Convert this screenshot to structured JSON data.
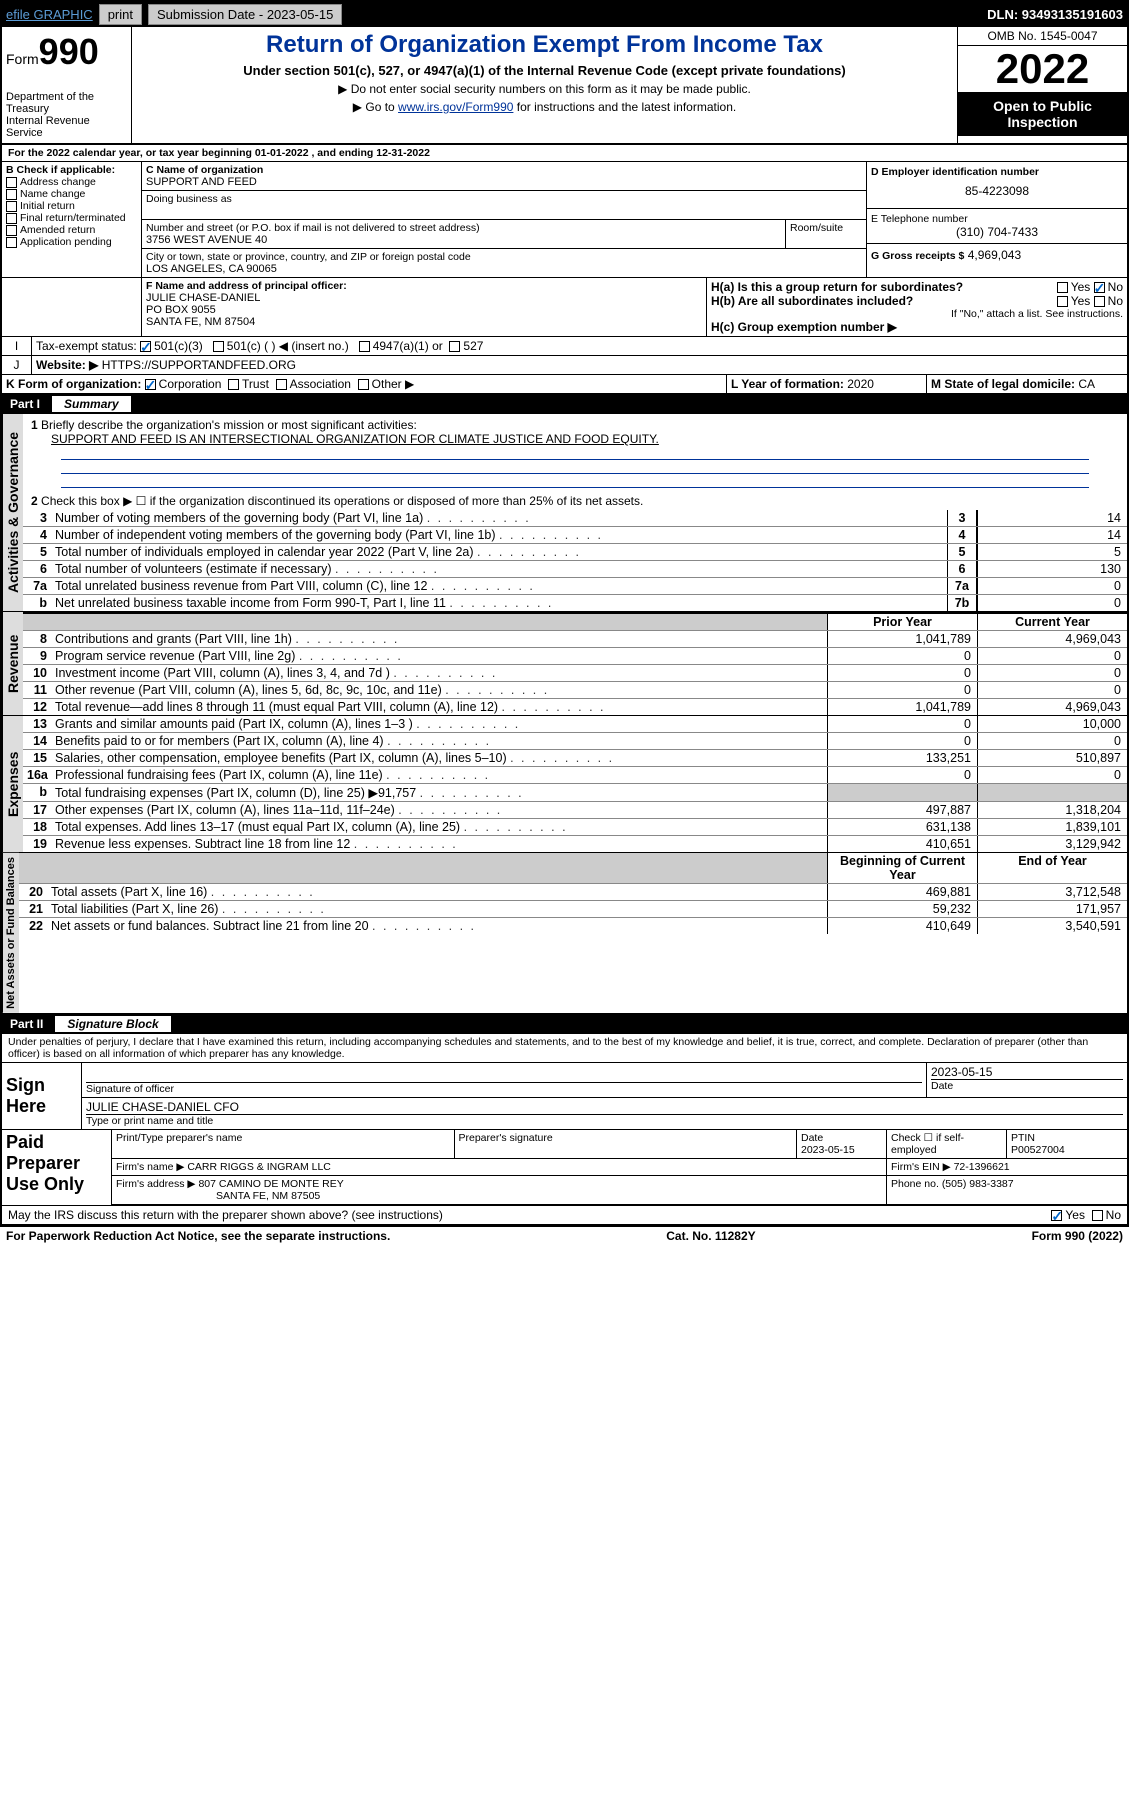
{
  "topbar": {
    "efile": "efile GRAPHIC",
    "print": "print",
    "subdate_label": "Submission Date - 2023-05-15",
    "dln": "DLN: 93493135191603"
  },
  "header": {
    "form_word": "Form",
    "form_num": "990",
    "dept": "Department of the Treasury",
    "irs": "Internal Revenue Service",
    "title": "Return of Organization Exempt From Income Tax",
    "sub": "Under section 501(c), 527, or 4947(a)(1) of the Internal Revenue Code (except private foundations)",
    "note1": "▶ Do not enter social security numbers on this form as it may be made public.",
    "note2_pre": "▶ Go to ",
    "note2_link": "www.irs.gov/Form990",
    "note2_post": " for instructions and the latest information.",
    "omb": "OMB No. 1545-0047",
    "year": "2022",
    "open": "Open to Public Inspection"
  },
  "periodA": "For the 2022 calendar year, or tax year beginning 01-01-2022    , and ending 12-31-2022",
  "blockB": {
    "label": "B Check if applicable:",
    "opts": [
      "Address change",
      "Name change",
      "Initial return",
      "Final return/terminated",
      "Amended return",
      "Application pending"
    ]
  },
  "blockC": {
    "name_label": "C Name of organization",
    "name": "SUPPORT AND FEED",
    "dba_label": "Doing business as",
    "addr_label": "Number and street (or P.O. box if mail is not delivered to street address)",
    "room": "Room/suite",
    "addr": "3756 WEST AVENUE 40",
    "city_label": "City or town, state or province, country, and ZIP or foreign postal code",
    "city": "LOS ANGELES, CA  90065"
  },
  "blockD": {
    "label": "D Employer identification number",
    "val": "85-4223098"
  },
  "blockE": {
    "label": "E Telephone number",
    "val": "(310) 704-7433"
  },
  "blockG": {
    "label": "G Gross receipts $",
    "val": "4,969,043"
  },
  "blockF": {
    "label": "F Name and address of principal officer:",
    "name": "JULIE CHASE-DANIEL",
    "po": "PO BOX 9055",
    "city": "SANTA FE, NM  87504"
  },
  "blockH": {
    "a": "H(a)  Is this a group return for subordinates?",
    "b": "H(b)  Are all subordinates included?",
    "b_note": "If \"No,\" attach a list. See instructions.",
    "c": "H(c)  Group exemption number ▶",
    "yes": "Yes",
    "no": "No"
  },
  "taxexempt": {
    "label": "Tax-exempt status:",
    "o1": "501(c)(3)",
    "o2": "501(c) (  ) ◀ (insert no.)",
    "o3": "4947(a)(1) or",
    "o4": "527"
  },
  "websiteJ": {
    "label": "Website: ▶",
    "val": "HTTPS://SUPPORTANDFEED.ORG"
  },
  "formK": {
    "label": "K Form of organization:",
    "corp": "Corporation",
    "trust": "Trust",
    "assoc": "Association",
    "other": "Other ▶"
  },
  "yearL": {
    "label": "L Year of formation: ",
    "val": "2020"
  },
  "stateM": {
    "label": "M State of legal domicile: ",
    "val": "CA"
  },
  "part1": {
    "num": "Part I",
    "title": "Summary"
  },
  "summary": {
    "l1": "Briefly describe the organization's mission or most significant activities:",
    "l1val": "SUPPORT AND FEED IS AN INTERSECTIONAL ORGANIZATION FOR CLIMATE JUSTICE AND FOOD EQUITY.",
    "l2": "Check this box ▶ ☐  if the organization discontinued its operations or disposed of more than 25% of its net assets.",
    "rows": [
      {
        "n": "3",
        "d": "Number of voting members of the governing body (Part VI, line 1a)",
        "box": "3",
        "v": "14"
      },
      {
        "n": "4",
        "d": "Number of independent voting members of the governing body (Part VI, line 1b)",
        "box": "4",
        "v": "14"
      },
      {
        "n": "5",
        "d": "Total number of individuals employed in calendar year 2022 (Part V, line 2a)",
        "box": "5",
        "v": "5"
      },
      {
        "n": "6",
        "d": "Total number of volunteers (estimate if necessary)",
        "box": "6",
        "v": "130"
      },
      {
        "n": "7a",
        "d": "Total unrelated business revenue from Part VIII, column (C), line 12",
        "box": "7a",
        "v": "0"
      },
      {
        "n": "b",
        "d": "Net unrelated business taxable income from Form 990-T, Part I, line 11",
        "box": "7b",
        "v": "0"
      }
    ],
    "hdr_prior": "Prior Year",
    "hdr_curr": "Current Year",
    "rev": [
      {
        "n": "8",
        "d": "Contributions and grants (Part VIII, line 1h)",
        "p": "1,041,789",
        "c": "4,969,043"
      },
      {
        "n": "9",
        "d": "Program service revenue (Part VIII, line 2g)",
        "p": "0",
        "c": "0"
      },
      {
        "n": "10",
        "d": "Investment income (Part VIII, column (A), lines 3, 4, and 7d )",
        "p": "0",
        "c": "0"
      },
      {
        "n": "11",
        "d": "Other revenue (Part VIII, column (A), lines 5, 6d, 8c, 9c, 10c, and 11e)",
        "p": "0",
        "c": "0"
      },
      {
        "n": "12",
        "d": "Total revenue—add lines 8 through 11 (must equal Part VIII, column (A), line 12)",
        "p": "1,041,789",
        "c": "4,969,043"
      }
    ],
    "exp": [
      {
        "n": "13",
        "d": "Grants and similar amounts paid (Part IX, column (A), lines 1–3 )",
        "p": "0",
        "c": "10,000"
      },
      {
        "n": "14",
        "d": "Benefits paid to or for members (Part IX, column (A), line 4)",
        "p": "0",
        "c": "0"
      },
      {
        "n": "15",
        "d": "Salaries, other compensation, employee benefits (Part IX, column (A), lines 5–10)",
        "p": "133,251",
        "c": "510,897"
      },
      {
        "n": "16a",
        "d": "Professional fundraising fees (Part IX, column (A), line 11e)",
        "p": "0",
        "c": "0"
      },
      {
        "n": "b",
        "d": "Total fundraising expenses (Part IX, column (D), line 25) ▶91,757",
        "p": "",
        "c": "",
        "grey": true
      },
      {
        "n": "17",
        "d": "Other expenses (Part IX, column (A), lines 11a–11d, 11f–24e)",
        "p": "497,887",
        "c": "1,318,204"
      },
      {
        "n": "18",
        "d": "Total expenses. Add lines 13–17 (must equal Part IX, column (A), line 25)",
        "p": "631,138",
        "c": "1,839,101"
      },
      {
        "n": "19",
        "d": "Revenue less expenses. Subtract line 18 from line 12",
        "p": "410,651",
        "c": "3,129,942"
      }
    ],
    "hdr_beg": "Beginning of Current Year",
    "hdr_end": "End of Year",
    "net": [
      {
        "n": "20",
        "d": "Total assets (Part X, line 16)",
        "p": "469,881",
        "c": "3,712,548"
      },
      {
        "n": "21",
        "d": "Total liabilities (Part X, line 26)",
        "p": "59,232",
        "c": "171,957"
      },
      {
        "n": "22",
        "d": "Net assets or fund balances. Subtract line 21 from line 20",
        "p": "410,649",
        "c": "3,540,591"
      }
    ]
  },
  "part2": {
    "num": "Part II",
    "title": "Signature Block"
  },
  "sig": {
    "decl": "Under penalties of perjury, I declare that I have examined this return, including accompanying schedules and statements, and to the best of my knowledge and belief, it is true, correct, and complete. Declaration of preparer (other than officer) is based on all information of which preparer has any knowledge.",
    "sign_here": "Sign Here",
    "sig_officer": "Signature of officer",
    "date": "Date",
    "date_val": "2023-05-15",
    "name": "JULIE CHASE-DANIEL CFO",
    "name_lbl": "Type or print name and title",
    "paid": "Paid Preparer Use Only",
    "prep_name_lbl": "Print/Type preparer's name",
    "prep_sig_lbl": "Preparer's signature",
    "prep_date": "2023-05-15",
    "check_se": "Check ☐ if self-employed",
    "ptin_lbl": "PTIN",
    "ptin": "P00527004",
    "firm_name_lbl": "Firm's name    ▶",
    "firm_name": "CARR RIGGS & INGRAM LLC",
    "firm_ein_lbl": "Firm's EIN ▶",
    "firm_ein": "72-1396621",
    "firm_addr_lbl": "Firm's address ▶",
    "firm_addr1": "807 CAMINO DE MONTE REY",
    "firm_addr2": "SANTA FE, NM  87505",
    "phone_lbl": "Phone no.",
    "phone": "(505) 983-3387",
    "may": "May the IRS discuss this return with the preparer shown above? (see instructions)",
    "yes": "Yes",
    "no": "No"
  },
  "footer": {
    "left": "For Paperwork Reduction Act Notice, see the separate instructions.",
    "mid": "Cat. No. 11282Y",
    "right": "Form 990 (2022)"
  }
}
